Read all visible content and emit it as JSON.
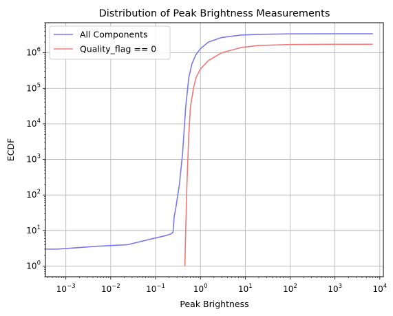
{
  "chart_data": {
    "type": "line",
    "title": "Distribution of Peak Brightness Measurements",
    "xlabel": "Peak Brightness",
    "ylabel": "ECDF",
    "xscale": "log",
    "yscale": "log",
    "xlim": [
      0.00035,
      12000
    ],
    "ylim": [
      0.5,
      7000000
    ],
    "grid": true,
    "legend_position": "top-left",
    "x_ticks": [
      {
        "value": 0.001,
        "base": "10",
        "exp": "−3"
      },
      {
        "value": 0.01,
        "base": "10",
        "exp": "−2"
      },
      {
        "value": 0.1,
        "base": "10",
        "exp": "−1"
      },
      {
        "value": 1,
        "base": "10",
        "exp": "0"
      },
      {
        "value": 10,
        "base": "10",
        "exp": "1"
      },
      {
        "value": 100,
        "base": "10",
        "exp": "2"
      },
      {
        "value": 1000,
        "base": "10",
        "exp": "3"
      },
      {
        "value": 10000,
        "base": "10",
        "exp": "4"
      }
    ],
    "y_ticks": [
      {
        "value": 1,
        "base": "10",
        "exp": "0"
      },
      {
        "value": 10,
        "base": "10",
        "exp": "1"
      },
      {
        "value": 100,
        "base": "10",
        "exp": "2"
      },
      {
        "value": 1000,
        "base": "10",
        "exp": "3"
      },
      {
        "value": 10000,
        "base": "10",
        "exp": "4"
      },
      {
        "value": 100000,
        "base": "10",
        "exp": "5"
      },
      {
        "value": 1000000,
        "base": "10",
        "exp": "6"
      }
    ],
    "series": [
      {
        "name": "All Components",
        "color": "#7878f0",
        "points": [
          [
            0.00035,
            3.0
          ],
          [
            0.00065,
            3.0
          ],
          [
            0.0013,
            3.2
          ],
          [
            0.005,
            3.6
          ],
          [
            0.024,
            4.0
          ],
          [
            0.09,
            6.0
          ],
          [
            0.17,
            7.2
          ],
          [
            0.22,
            8.0
          ],
          [
            0.245,
            9.0
          ],
          [
            0.26,
            25
          ],
          [
            0.28,
            40
          ],
          [
            0.3,
            70
          ],
          [
            0.34,
            200
          ],
          [
            0.4,
            1500
          ],
          [
            0.47,
            30000
          ],
          [
            0.55,
            200000
          ],
          [
            0.65,
            500000
          ],
          [
            0.8,
            900000
          ],
          [
            1.0,
            1300000
          ],
          [
            1.5,
            2000000
          ],
          [
            3,
            2700000
          ],
          [
            8,
            3150000
          ],
          [
            20,
            3300000
          ],
          [
            100,
            3400000
          ],
          [
            1000,
            3420000
          ],
          [
            7000,
            3420000
          ]
        ]
      },
      {
        "name": "Quality_flag == 0",
        "color": "#f07878",
        "points": [
          [
            0.45,
            1.0
          ],
          [
            0.47,
            10
          ],
          [
            0.5,
            200
          ],
          [
            0.55,
            5000
          ],
          [
            0.6,
            30000
          ],
          [
            0.7,
            100000
          ],
          [
            0.8,
            200000
          ],
          [
            1.0,
            350000
          ],
          [
            1.5,
            600000
          ],
          [
            3,
            1000000
          ],
          [
            8,
            1400000
          ],
          [
            20,
            1600000
          ],
          [
            100,
            1700000
          ],
          [
            1000,
            1730000
          ],
          [
            7000,
            1730000
          ]
        ]
      }
    ]
  }
}
